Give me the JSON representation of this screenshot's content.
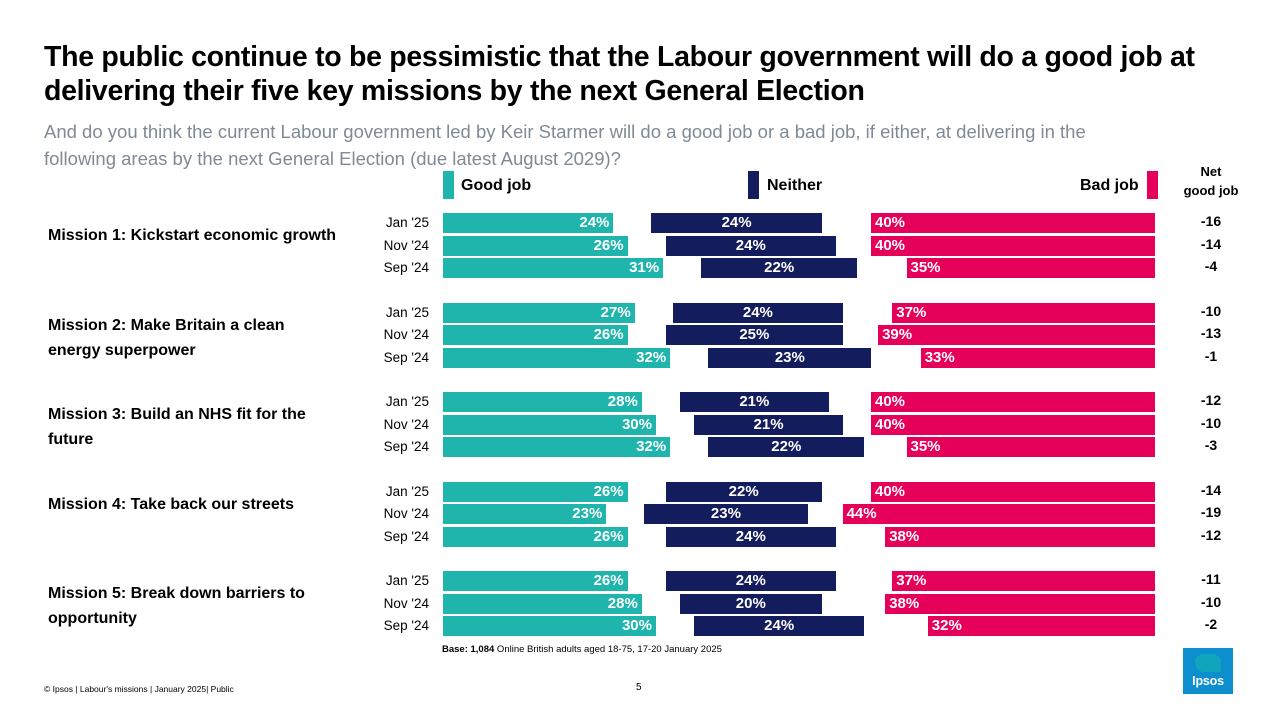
{
  "title": "The public continue to be pessimistic that the Labour government will do a good job at delivering their five key missions by the next General Election",
  "subtitle": "And do you think the current Labour government led by Keir Starmer will do a good job or a bad job, if either, at delivering in the following areas by the next General Election (due latest August 2029)?",
  "legend": {
    "good": "Good job",
    "neither": "Neither",
    "bad": "Bad job"
  },
  "net_header": {
    "line1": "Net",
    "line2": "good job"
  },
  "colors": {
    "good": "#1fb5ad",
    "neither": "#131c5c",
    "bad": "#e5005a"
  },
  "chart_data": {
    "type": "bar",
    "subtype": "divergent-stacked-horizontal",
    "title": "The public continue to be pessimistic that the Labour government will do a good job at delivering their five key missions by the next General Election",
    "value_unit": "%",
    "series_names": [
      "Good job",
      "Neither",
      "Bad job"
    ],
    "groups": [
      {
        "label": "Mission 1: Kickstart economic growth",
        "rows": [
          {
            "wave": "Jan '25",
            "good": 24,
            "neither": 24,
            "bad": 40,
            "net": -16
          },
          {
            "wave": "Nov '24",
            "good": 26,
            "neither": 24,
            "bad": 40,
            "net": -14
          },
          {
            "wave": "Sep '24",
            "good": 31,
            "neither": 22,
            "bad": 35,
            "net": -4
          }
        ]
      },
      {
        "label": "Mission 2: Make Britain a clean energy superpower",
        "rows": [
          {
            "wave": "Jan '25",
            "good": 27,
            "neither": 24,
            "bad": 37,
            "net": -10
          },
          {
            "wave": "Nov '24",
            "good": 26,
            "neither": 25,
            "bad": 39,
            "net": -13
          },
          {
            "wave": "Sep '24",
            "good": 32,
            "neither": 23,
            "bad": 33,
            "net": -1
          }
        ]
      },
      {
        "label": "Mission 3: Build an NHS fit for the future",
        "rows": [
          {
            "wave": "Jan '25",
            "good": 28,
            "neither": 21,
            "bad": 40,
            "net": -12
          },
          {
            "wave": "Nov '24",
            "good": 30,
            "neither": 21,
            "bad": 40,
            "net": -10
          },
          {
            "wave": "Sep '24",
            "good": 32,
            "neither": 22,
            "bad": 35,
            "net": -3
          }
        ]
      },
      {
        "label": "Mission 4: Take back our streets",
        "rows": [
          {
            "wave": "Jan '25",
            "good": 26,
            "neither": 22,
            "bad": 40,
            "net": -14
          },
          {
            "wave": "Nov '24",
            "good": 23,
            "neither": 23,
            "bad": 44,
            "net": -19
          },
          {
            "wave": "Sep '24",
            "good": 26,
            "neither": 24,
            "bad": 38,
            "net": -12
          }
        ]
      },
      {
        "label": "Mission 5: Break down barriers to opportunity",
        "rows": [
          {
            "wave": "Jan '25",
            "good": 26,
            "neither": 24,
            "bad": 37,
            "net": -11
          },
          {
            "wave": "Nov '24",
            "good": 28,
            "neither": 20,
            "bad": 38,
            "net": -10
          },
          {
            "wave": "Sep '24",
            "good": 30,
            "neither": 24,
            "bad": 32,
            "net": -2
          }
        ]
      }
    ]
  },
  "base": {
    "bold": "Base: 1,084",
    "rest": " Online British adults aged 18-75, 17-20 January 2025"
  },
  "footer": "© Ipsos | Labour's missions | January 2025| Public",
  "page_number": "5",
  "logo_text": "Ipsos"
}
